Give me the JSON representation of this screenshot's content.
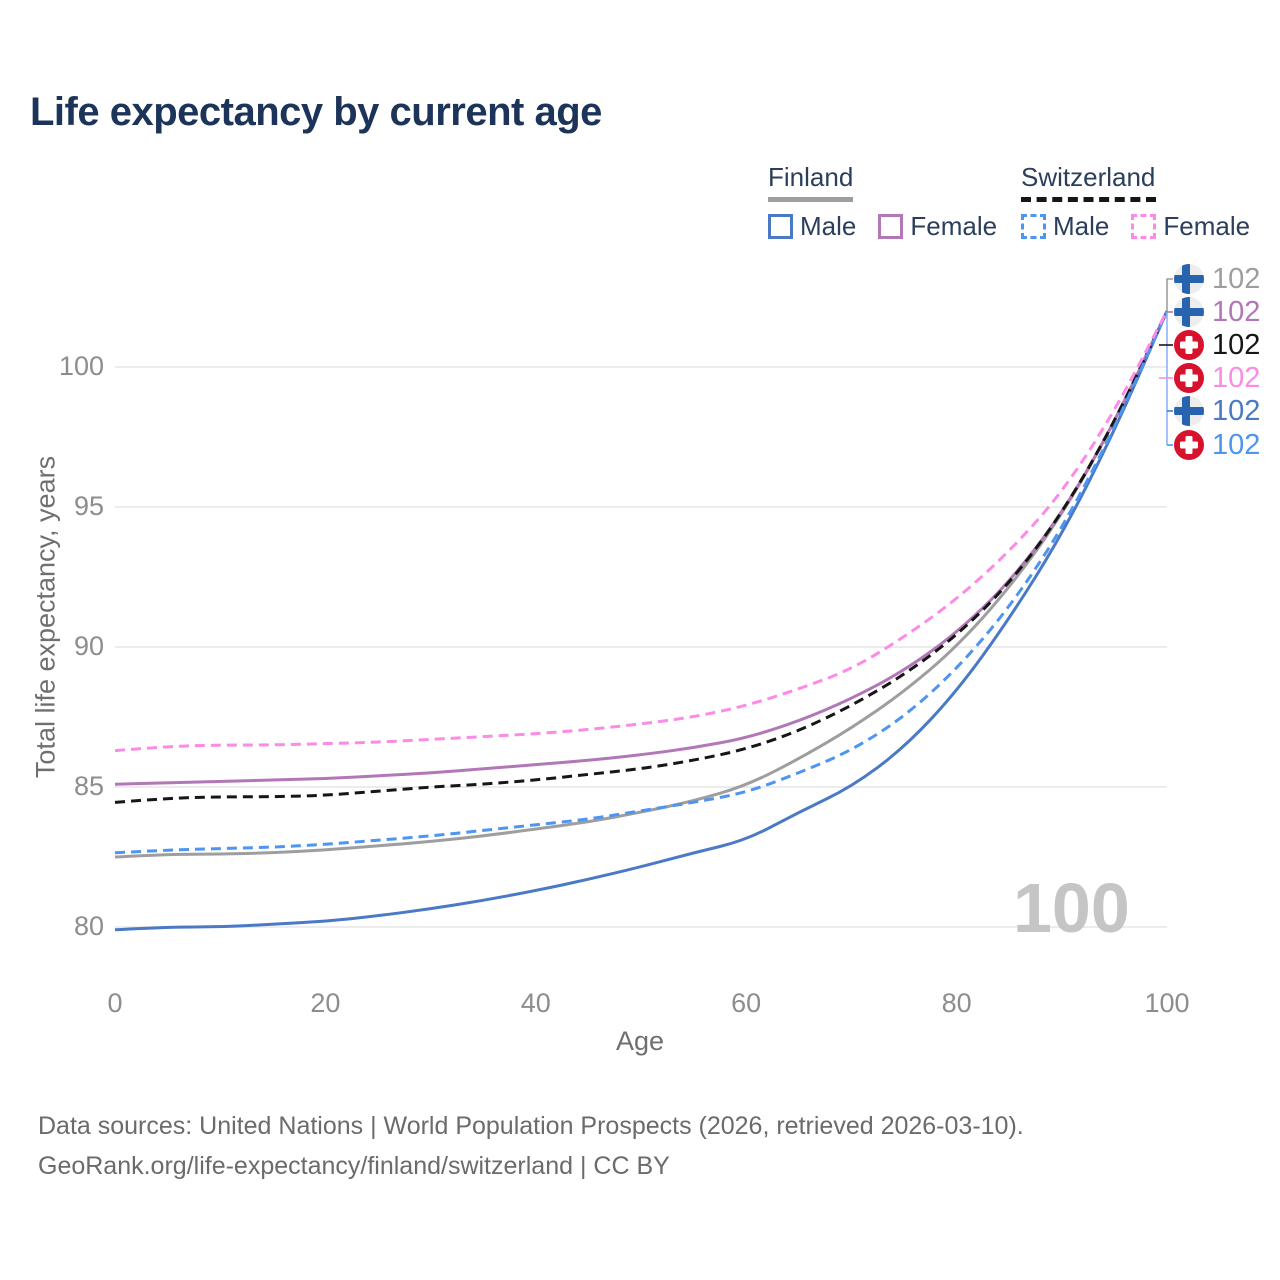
{
  "title": "Life expectancy by current age",
  "legend": {
    "finland": {
      "label": "Finland",
      "male": "Male",
      "female": "Female"
    },
    "switzerland": {
      "label": "Switzerland",
      "male": "Male",
      "female": "Female"
    }
  },
  "chart_data": {
    "type": "line",
    "title": "Life expectancy by current age",
    "xlabel": "Age",
    "ylabel": "Total life expectancy, years",
    "grid": "horizontal-only",
    "legend_position": "top-right",
    "xticks": [
      0,
      20,
      40,
      60,
      80,
      100
    ],
    "yticks": [
      80,
      85,
      90,
      95,
      100
    ],
    "xlim": [
      0,
      100
    ],
    "ylim": [
      79.5,
      102.5
    ],
    "x": [
      0,
      5,
      10,
      15,
      20,
      25,
      30,
      35,
      40,
      45,
      50,
      55,
      60,
      65,
      70,
      75,
      80,
      85,
      90,
      95,
      100
    ],
    "series": [
      {
        "name": "Finland — Both sexes",
        "color": "#9e9e9e",
        "dash": "solid",
        "values": [
          82.5,
          82.6,
          82.6,
          82.65,
          82.75,
          82.9,
          83.05,
          83.25,
          83.5,
          83.75,
          84.1,
          84.5,
          85.05,
          86.0,
          87.1,
          88.4,
          90.0,
          92.1,
          94.7,
          98.0,
          102
        ]
      },
      {
        "name": "Finland — Female",
        "color": "#b277b6",
        "dash": "solid",
        "values": [
          85.1,
          85.15,
          85.2,
          85.25,
          85.3,
          85.4,
          85.5,
          85.65,
          85.8,
          85.95,
          86.15,
          86.4,
          86.75,
          87.35,
          88.15,
          89.15,
          90.5,
          92.3,
          94.75,
          98.0,
          102
        ]
      },
      {
        "name": "Finland — Male",
        "color": "#4a79c5",
        "dash": "solid",
        "values": [
          79.9,
          80.0,
          80.0,
          80.1,
          80.2,
          80.4,
          80.65,
          80.95,
          81.3,
          81.7,
          82.15,
          82.65,
          83.1,
          84.1,
          85.0,
          86.4,
          88.4,
          91.0,
          94.0,
          97.7,
          102
        ]
      },
      {
        "name": "Switzerland — Both sexes",
        "color": "#161616",
        "dash": "dashed",
        "values": [
          84.45,
          84.6,
          84.65,
          84.65,
          84.7,
          84.85,
          85.0,
          85.1,
          85.25,
          85.45,
          85.65,
          85.95,
          86.35,
          87.0,
          87.9,
          89.0,
          90.4,
          92.25,
          94.75,
          98.0,
          102
        ]
      },
      {
        "name": "Switzerland — Male",
        "color": "#4e95f2",
        "dash": "dashed",
        "values": [
          82.65,
          82.75,
          82.8,
          82.85,
          82.95,
          83.1,
          83.25,
          83.45,
          83.65,
          83.85,
          84.15,
          84.45,
          84.8,
          85.5,
          86.3,
          87.5,
          89.2,
          91.4,
          94.2,
          97.8,
          102
        ]
      },
      {
        "name": "Switzerland — Female",
        "color": "#fc8be6",
        "dash": "dashed",
        "values": [
          86.3,
          86.45,
          86.5,
          86.5,
          86.55,
          86.6,
          86.7,
          86.8,
          86.9,
          87.05,
          87.25,
          87.5,
          87.9,
          88.5,
          89.2,
          90.35,
          91.7,
          93.4,
          95.5,
          98.4,
          102
        ]
      }
    ],
    "end_labels": [
      {
        "flag": "finland",
        "value": "102",
        "color": "#9e9e9e",
        "series": "Finland — Both sexes"
      },
      {
        "flag": "finland",
        "value": "102",
        "color": "#b277b6",
        "series": "Finland — Female"
      },
      {
        "flag": "switzerland",
        "value": "102",
        "color": "#161616",
        "series": "Switzerland — Both sexes"
      },
      {
        "flag": "switzerland",
        "value": "102",
        "color": "#fc8be6",
        "series": "Switzerland — Female"
      },
      {
        "flag": "finland",
        "value": "102",
        "color": "#4a79c5",
        "series": "Finland — Male"
      },
      {
        "flag": "switzerland",
        "value": "102",
        "color": "#4e95f2",
        "series": "Switzerland — Male"
      }
    ]
  },
  "colors": {
    "title_text": "#1c3459",
    "legend_text": "#2b3f5c",
    "grid": "#ececec",
    "tick_text": "#8d8d8d",
    "axis_label_text": "#6f6f6f",
    "watermark": "#c5c5c5",
    "footer_text": "#6b6b6b",
    "finland_flag_blue": "#2763ae",
    "finland_flag_bg": "#ededed",
    "swiss_flag_red": "#d8122d"
  },
  "watermark": "100",
  "footer": {
    "line1": "Data sources: United Nations | World Population Prospects (2026, retrieved 2026-03-10).",
    "line2": "GeoRank.org/life-expectancy/finland/switzerland | CC BY"
  }
}
